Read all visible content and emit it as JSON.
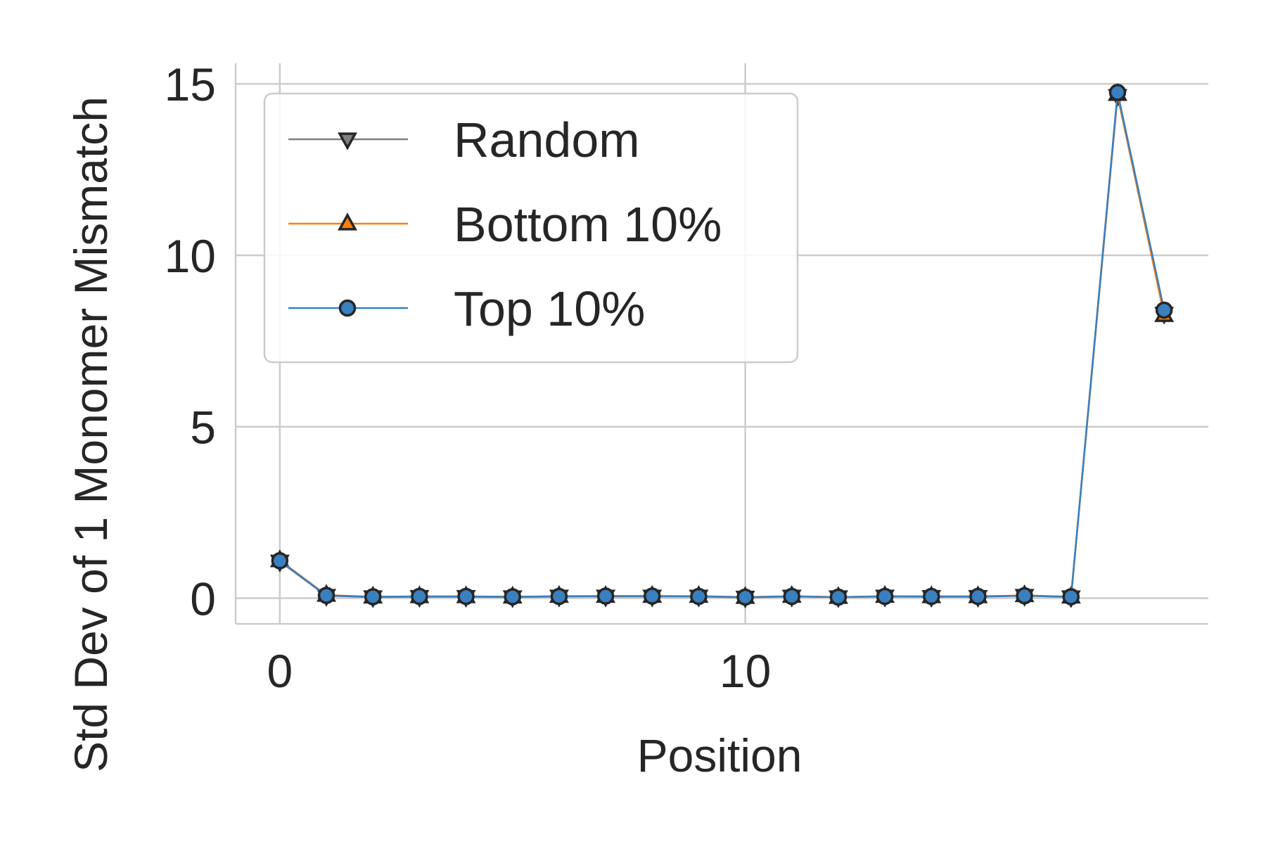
{
  "chart_data": {
    "type": "line",
    "title": "",
    "xlabel": "Position",
    "ylabel": "Std Dev of 1 Monomer Mismatch",
    "x": [
      0,
      1,
      2,
      3,
      4,
      5,
      6,
      7,
      8,
      9,
      10,
      11,
      12,
      13,
      14,
      15,
      16,
      17,
      18,
      19
    ],
    "xlim": [
      -0.95,
      19.95
    ],
    "ylim": [
      -0.75,
      15.6
    ],
    "xticks": [
      0,
      10
    ],
    "xtick_labels": [
      "0",
      "10"
    ],
    "yticks": [
      0,
      5,
      10,
      15
    ],
    "ytick_labels": [
      "0",
      "5",
      "10",
      "15"
    ],
    "grid": true,
    "legend_position": "upper-left",
    "series": [
      {
        "name": "Random",
        "color": "#7f7f7f",
        "marker": "triangle-down",
        "values": [
          1.07,
          0.07,
          0.03,
          0.04,
          0.04,
          0.03,
          0.05,
          0.05,
          0.05,
          0.05,
          0.02,
          0.05,
          0.03,
          0.05,
          0.04,
          0.04,
          0.07,
          0.03,
          14.65,
          8.3
        ]
      },
      {
        "name": "Bottom 10%",
        "color": "#ff7f0e",
        "marker": "triangle-up",
        "values": [
          1.1,
          0.09,
          0.04,
          0.05,
          0.05,
          0.04,
          0.06,
          0.06,
          0.06,
          0.06,
          0.03,
          0.06,
          0.03,
          0.06,
          0.05,
          0.05,
          0.08,
          0.04,
          14.7,
          8.25
        ]
      },
      {
        "name": "Top 10%",
        "color": "#3a7fbf",
        "marker": "circle",
        "values": [
          1.09,
          0.08,
          0.04,
          0.05,
          0.05,
          0.04,
          0.05,
          0.06,
          0.06,
          0.05,
          0.03,
          0.05,
          0.03,
          0.05,
          0.05,
          0.05,
          0.07,
          0.04,
          14.75,
          8.4
        ]
      }
    ]
  }
}
